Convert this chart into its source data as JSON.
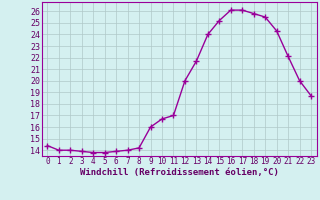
{
  "x": [
    0,
    1,
    2,
    3,
    4,
    5,
    6,
    7,
    8,
    9,
    10,
    11,
    12,
    13,
    14,
    15,
    16,
    17,
    18,
    19,
    20,
    21,
    22,
    23
  ],
  "y": [
    14.4,
    14.0,
    14.0,
    13.9,
    13.8,
    13.8,
    13.9,
    14.0,
    14.2,
    16.0,
    16.7,
    17.0,
    20.0,
    21.7,
    24.0,
    25.2,
    26.1,
    26.1,
    25.8,
    25.5,
    24.3,
    22.1,
    20.0,
    18.7
  ],
  "line_color": "#990099",
  "marker": "+",
  "markersize": 4,
  "markeredgewidth": 1.0,
  "linewidth": 1.0,
  "background_color": "#d4f0f0",
  "grid_color": "#b0c8c8",
  "xlabel": "Windchill (Refroidissement éolien,°C)",
  "xlabel_fontsize": 6.5,
  "ylabel_ticks": [
    14,
    15,
    16,
    17,
    18,
    19,
    20,
    21,
    22,
    23,
    24,
    25,
    26
  ],
  "ylim": [
    13.5,
    26.8
  ],
  "xlim": [
    -0.5,
    23.5
  ],
  "xtick_fontsize": 5.5,
  "ytick_fontsize": 6.0,
  "tick_color": "#660066",
  "label_color": "#660066"
}
